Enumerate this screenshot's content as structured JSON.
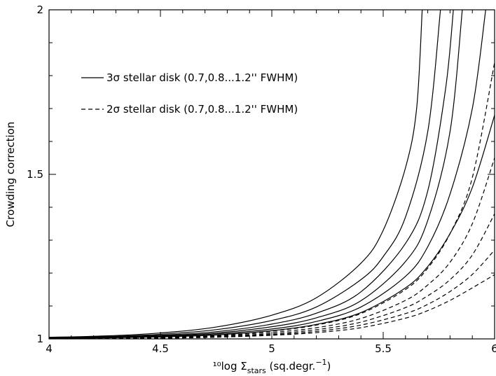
{
  "chart_data": {
    "type": "line",
    "xlabel": "¹⁰log Σ",
    "xlabel_sub": "stars",
    "xlabel_tail": " (sq.degr.",
    "xlabel_sup": "−1",
    "xlabel_close": ")",
    "ylabel": "Crowding correction",
    "xlim": [
      4,
      6
    ],
    "ylim": [
      1,
      2
    ],
    "xticks": [
      4,
      4.5,
      5,
      5.5,
      6
    ],
    "xtick_labels": [
      "4",
      "4.5",
      "5",
      "5.5",
      "6"
    ],
    "yticks": [
      1,
      1.5,
      2
    ],
    "ytick_labels": [
      "1",
      "1.5",
      "2"
    ],
    "grid": false,
    "legend": [
      {
        "label": "3σ stellar disk (0.7,0.8...1.2'' FWHM)",
        "style": "solid"
      },
      {
        "label": "2σ stellar disk (0.7,0.8...1.2'' FWHM)",
        "style": "dashed"
      }
    ],
    "series": [
      {
        "group": "3sigma",
        "style": "solid",
        "x": [
          4.0,
          4.25,
          4.5,
          4.75,
          5.0,
          5.2,
          5.4,
          5.5,
          5.6,
          5.65,
          5.675
        ],
        "y": [
          1.005,
          1.009,
          1.018,
          1.036,
          1.072,
          1.125,
          1.23,
          1.33,
          1.52,
          1.7,
          2.0
        ]
      },
      {
        "group": "3sigma",
        "style": "solid",
        "x": [
          4.0,
          4.25,
          4.5,
          4.75,
          5.0,
          5.2,
          5.4,
          5.5,
          5.6,
          5.7,
          5.757
        ],
        "y": [
          1.004,
          1.007,
          1.014,
          1.028,
          1.056,
          1.097,
          1.18,
          1.25,
          1.37,
          1.63,
          2.0
        ]
      },
      {
        "group": "3sigma",
        "style": "solid",
        "x": [
          4.0,
          4.25,
          4.5,
          4.75,
          5.0,
          5.2,
          5.4,
          5.6,
          5.7,
          5.78,
          5.815
        ],
        "y": [
          1.003,
          1.006,
          1.011,
          1.022,
          1.045,
          1.078,
          1.143,
          1.29,
          1.45,
          1.76,
          2.0
        ]
      },
      {
        "group": "3sigma",
        "style": "solid",
        "x": [
          4.0,
          4.25,
          4.5,
          4.75,
          5.0,
          5.2,
          5.4,
          5.6,
          5.7,
          5.8,
          5.855
        ],
        "y": [
          1.002,
          1.005,
          1.009,
          1.018,
          1.037,
          1.064,
          1.116,
          1.235,
          1.36,
          1.63,
          2.0
        ]
      },
      {
        "group": "3sigma",
        "style": "solid",
        "x": [
          4.0,
          4.25,
          4.5,
          4.75,
          5.0,
          5.2,
          5.4,
          5.6,
          5.7,
          5.8,
          5.9,
          5.96
        ],
        "y": [
          1.002,
          1.004,
          1.008,
          1.015,
          1.03,
          1.053,
          1.097,
          1.19,
          1.28,
          1.44,
          1.7,
          2.0
        ]
      },
      {
        "group": "3sigma",
        "style": "solid",
        "x": [
          4.0,
          4.25,
          4.5,
          4.75,
          5.0,
          5.2,
          5.4,
          5.6,
          5.7,
          5.8,
          5.9,
          6.0
        ],
        "y": [
          1.001,
          1.003,
          1.006,
          1.012,
          1.025,
          1.044,
          1.08,
          1.155,
          1.22,
          1.32,
          1.46,
          1.68
        ]
      },
      {
        "group": "2sigma",
        "style": "dashed",
        "x": [
          4.0,
          4.25,
          4.5,
          4.75,
          5.0,
          5.2,
          5.4,
          5.6,
          5.7,
          5.8,
          5.9,
          6.0
        ],
        "y": [
          1.001,
          1.003,
          1.006,
          1.012,
          1.024,
          1.042,
          1.077,
          1.15,
          1.215,
          1.32,
          1.49,
          1.84
        ]
      },
      {
        "group": "2sigma",
        "style": "dashed",
        "x": [
          4.0,
          4.25,
          4.5,
          4.75,
          5.0,
          5.2,
          5.4,
          5.6,
          5.7,
          5.8,
          5.9,
          6.0
        ],
        "y": [
          1.001,
          1.002,
          1.005,
          1.01,
          1.02,
          1.034,
          1.062,
          1.117,
          1.164,
          1.233,
          1.35,
          1.55
        ]
      },
      {
        "group": "2sigma",
        "style": "dashed",
        "x": [
          4.0,
          4.25,
          4.5,
          4.75,
          5.0,
          5.2,
          5.4,
          5.6,
          5.7,
          5.8,
          5.9,
          6.0
        ],
        "y": [
          1.001,
          1.002,
          1.004,
          1.008,
          1.016,
          1.028,
          1.051,
          1.095,
          1.131,
          1.18,
          1.255,
          1.38
        ]
      },
      {
        "group": "2sigma",
        "style": "dashed",
        "x": [
          4.0,
          4.25,
          4.5,
          4.75,
          5.0,
          5.2,
          5.4,
          5.6,
          5.7,
          5.8,
          5.9,
          6.0
        ],
        "y": [
          1.0,
          1.001,
          1.003,
          1.006,
          1.013,
          1.023,
          1.042,
          1.077,
          1.105,
          1.144,
          1.196,
          1.27
        ]
      },
      {
        "group": "2sigma",
        "style": "dashed",
        "x": [
          4.0,
          4.25,
          4.5,
          4.75,
          5.0,
          5.2,
          5.4,
          5.6,
          5.7,
          5.8,
          5.9,
          6.0
        ],
        "y": [
          1.0,
          1.001,
          1.002,
          1.005,
          1.011,
          1.019,
          1.034,
          1.063,
          1.086,
          1.117,
          1.155,
          1.195
        ]
      }
    ]
  }
}
